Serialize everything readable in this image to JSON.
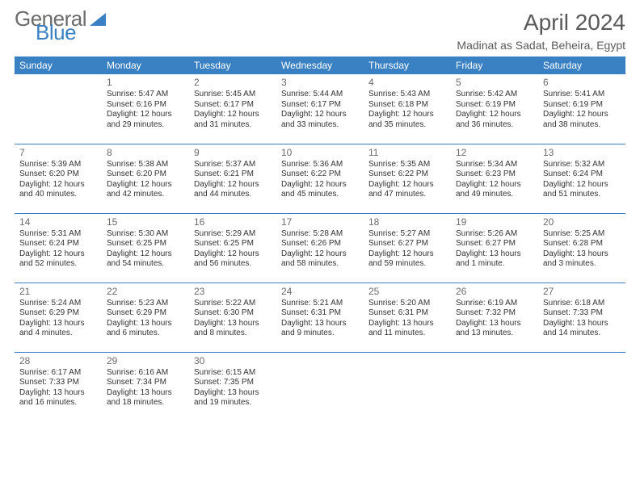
{
  "logo": {
    "line1": "General",
    "line2": "Blue"
  },
  "header": {
    "month_title": "April 2024",
    "location": "Madinat as Sadat, Beheira, Egypt"
  },
  "calendar": {
    "day_headers": [
      "Sunday",
      "Monday",
      "Tuesday",
      "Wednesday",
      "Thursday",
      "Friday",
      "Saturday"
    ],
    "header_bg": "#3a81c4",
    "header_fg": "#ffffff",
    "rule_color": "#3a81c4",
    "text_color": "#333333",
    "daynum_color": "#6b6b6b",
    "weeks": [
      [
        null,
        {
          "n": "1",
          "sr": "Sunrise: 5:47 AM",
          "ss": "Sunset: 6:16 PM",
          "d1": "Daylight: 12 hours",
          "d2": "and 29 minutes."
        },
        {
          "n": "2",
          "sr": "Sunrise: 5:45 AM",
          "ss": "Sunset: 6:17 PM",
          "d1": "Daylight: 12 hours",
          "d2": "and 31 minutes."
        },
        {
          "n": "3",
          "sr": "Sunrise: 5:44 AM",
          "ss": "Sunset: 6:17 PM",
          "d1": "Daylight: 12 hours",
          "d2": "and 33 minutes."
        },
        {
          "n": "4",
          "sr": "Sunrise: 5:43 AM",
          "ss": "Sunset: 6:18 PM",
          "d1": "Daylight: 12 hours",
          "d2": "and 35 minutes."
        },
        {
          "n": "5",
          "sr": "Sunrise: 5:42 AM",
          "ss": "Sunset: 6:19 PM",
          "d1": "Daylight: 12 hours",
          "d2": "and 36 minutes."
        },
        {
          "n": "6",
          "sr": "Sunrise: 5:41 AM",
          "ss": "Sunset: 6:19 PM",
          "d1": "Daylight: 12 hours",
          "d2": "and 38 minutes."
        }
      ],
      [
        {
          "n": "7",
          "sr": "Sunrise: 5:39 AM",
          "ss": "Sunset: 6:20 PM",
          "d1": "Daylight: 12 hours",
          "d2": "and 40 minutes."
        },
        {
          "n": "8",
          "sr": "Sunrise: 5:38 AM",
          "ss": "Sunset: 6:20 PM",
          "d1": "Daylight: 12 hours",
          "d2": "and 42 minutes."
        },
        {
          "n": "9",
          "sr": "Sunrise: 5:37 AM",
          "ss": "Sunset: 6:21 PM",
          "d1": "Daylight: 12 hours",
          "d2": "and 44 minutes."
        },
        {
          "n": "10",
          "sr": "Sunrise: 5:36 AM",
          "ss": "Sunset: 6:22 PM",
          "d1": "Daylight: 12 hours",
          "d2": "and 45 minutes."
        },
        {
          "n": "11",
          "sr": "Sunrise: 5:35 AM",
          "ss": "Sunset: 6:22 PM",
          "d1": "Daylight: 12 hours",
          "d2": "and 47 minutes."
        },
        {
          "n": "12",
          "sr": "Sunrise: 5:34 AM",
          "ss": "Sunset: 6:23 PM",
          "d1": "Daylight: 12 hours",
          "d2": "and 49 minutes."
        },
        {
          "n": "13",
          "sr": "Sunrise: 5:32 AM",
          "ss": "Sunset: 6:24 PM",
          "d1": "Daylight: 12 hours",
          "d2": "and 51 minutes."
        }
      ],
      [
        {
          "n": "14",
          "sr": "Sunrise: 5:31 AM",
          "ss": "Sunset: 6:24 PM",
          "d1": "Daylight: 12 hours",
          "d2": "and 52 minutes."
        },
        {
          "n": "15",
          "sr": "Sunrise: 5:30 AM",
          "ss": "Sunset: 6:25 PM",
          "d1": "Daylight: 12 hours",
          "d2": "and 54 minutes."
        },
        {
          "n": "16",
          "sr": "Sunrise: 5:29 AM",
          "ss": "Sunset: 6:25 PM",
          "d1": "Daylight: 12 hours",
          "d2": "and 56 minutes."
        },
        {
          "n": "17",
          "sr": "Sunrise: 5:28 AM",
          "ss": "Sunset: 6:26 PM",
          "d1": "Daylight: 12 hours",
          "d2": "and 58 minutes."
        },
        {
          "n": "18",
          "sr": "Sunrise: 5:27 AM",
          "ss": "Sunset: 6:27 PM",
          "d1": "Daylight: 12 hours",
          "d2": "and 59 minutes."
        },
        {
          "n": "19",
          "sr": "Sunrise: 5:26 AM",
          "ss": "Sunset: 6:27 PM",
          "d1": "Daylight: 13 hours",
          "d2": "and 1 minute."
        },
        {
          "n": "20",
          "sr": "Sunrise: 5:25 AM",
          "ss": "Sunset: 6:28 PM",
          "d1": "Daylight: 13 hours",
          "d2": "and 3 minutes."
        }
      ],
      [
        {
          "n": "21",
          "sr": "Sunrise: 5:24 AM",
          "ss": "Sunset: 6:29 PM",
          "d1": "Daylight: 13 hours",
          "d2": "and 4 minutes."
        },
        {
          "n": "22",
          "sr": "Sunrise: 5:23 AM",
          "ss": "Sunset: 6:29 PM",
          "d1": "Daylight: 13 hours",
          "d2": "and 6 minutes."
        },
        {
          "n": "23",
          "sr": "Sunrise: 5:22 AM",
          "ss": "Sunset: 6:30 PM",
          "d1": "Daylight: 13 hours",
          "d2": "and 8 minutes."
        },
        {
          "n": "24",
          "sr": "Sunrise: 5:21 AM",
          "ss": "Sunset: 6:31 PM",
          "d1": "Daylight: 13 hours",
          "d2": "and 9 minutes."
        },
        {
          "n": "25",
          "sr": "Sunrise: 5:20 AM",
          "ss": "Sunset: 6:31 PM",
          "d1": "Daylight: 13 hours",
          "d2": "and 11 minutes."
        },
        {
          "n": "26",
          "sr": "Sunrise: 6:19 AM",
          "ss": "Sunset: 7:32 PM",
          "d1": "Daylight: 13 hours",
          "d2": "and 13 minutes."
        },
        {
          "n": "27",
          "sr": "Sunrise: 6:18 AM",
          "ss": "Sunset: 7:33 PM",
          "d1": "Daylight: 13 hours",
          "d2": "and 14 minutes."
        }
      ],
      [
        {
          "n": "28",
          "sr": "Sunrise: 6:17 AM",
          "ss": "Sunset: 7:33 PM",
          "d1": "Daylight: 13 hours",
          "d2": "and 16 minutes."
        },
        {
          "n": "29",
          "sr": "Sunrise: 6:16 AM",
          "ss": "Sunset: 7:34 PM",
          "d1": "Daylight: 13 hours",
          "d2": "and 18 minutes."
        },
        {
          "n": "30",
          "sr": "Sunrise: 6:15 AM",
          "ss": "Sunset: 7:35 PM",
          "d1": "Daylight: 13 hours",
          "d2": "and 19 minutes."
        },
        null,
        null,
        null,
        null
      ]
    ]
  }
}
